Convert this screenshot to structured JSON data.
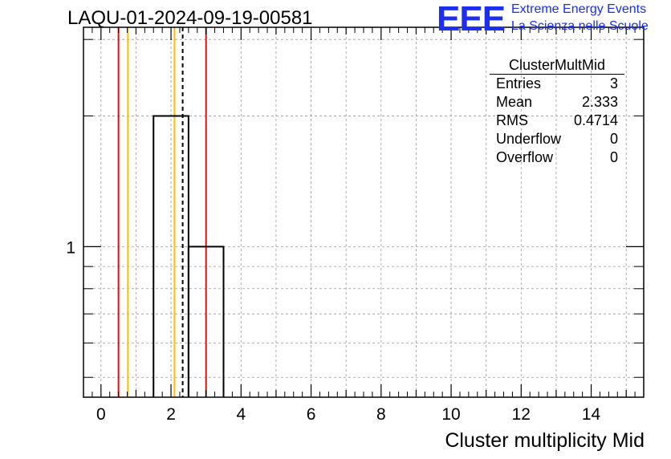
{
  "header": {
    "run_title": "LAQU-01-2024-09-19-00581"
  },
  "logo": {
    "mark": "EEE",
    "line1": "Extreme Energy Events",
    "line2": "La Scienza nelle Scuole",
    "color": "#1c2ef0"
  },
  "stats_box": {
    "title": "ClusterMultMid",
    "rows": [
      {
        "label": "Entries",
        "value": "3"
      },
      {
        "label": "Mean",
        "value": "2.333"
      },
      {
        "label": "RMS",
        "value": "0.4714"
      },
      {
        "label": "Underflow",
        "value": "0"
      },
      {
        "label": "Overflow",
        "value": "0"
      }
    ]
  },
  "chart_data": {
    "type": "histogram",
    "xlabel": "Cluster multiplicity Mid",
    "ylabel": "",
    "xlim": [
      -0.5,
      15.5
    ],
    "y_scale": "log",
    "ylim": [
      0.45,
      3.2
    ],
    "x_ticks": [
      0,
      2,
      4,
      6,
      8,
      10,
      12,
      14
    ],
    "y_tick_labels": [
      1
    ],
    "grid": true,
    "bins": [
      {
        "low": 1.5,
        "high": 2.5,
        "count": 2
      },
      {
        "low": 2.5,
        "high": 3.5,
        "count": 1
      }
    ],
    "vertical_lines": [
      {
        "x": 0.5,
        "color": "#e01010",
        "style": "solid"
      },
      {
        "x": 0.77,
        "color": "#f5c000",
        "style": "solid"
      },
      {
        "x": 2.1,
        "color": "#f5c000",
        "style": "solid"
      },
      {
        "x": 2.333,
        "color": "#000000",
        "style": "dashed"
      },
      {
        "x": 3.0,
        "color": "#e01010",
        "style": "solid"
      }
    ]
  }
}
